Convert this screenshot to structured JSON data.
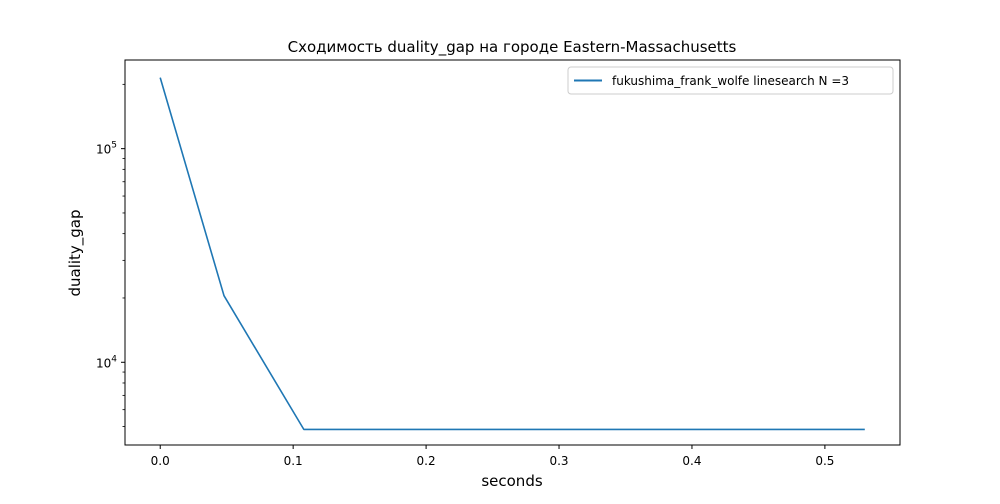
{
  "chart_data": {
    "type": "line",
    "title": "Сходимость duality_gap на городе Eastern-Massachusetts",
    "xlabel": "seconds",
    "ylabel": "duality_gap",
    "xscale": "linear",
    "yscale": "log",
    "xlim": [
      -0.0265,
      0.5565
    ],
    "ylim": [
      4100,
      260000
    ],
    "x_ticks": [
      0.0,
      0.1,
      0.2,
      0.3,
      0.4,
      0.5
    ],
    "x_tick_labels": [
      "0.0",
      "0.1",
      "0.2",
      "0.3",
      "0.4",
      "0.5"
    ],
    "y_ticks": [
      10000,
      100000
    ],
    "y_tick_labels": [
      {
        "base": "10",
        "exp": "4"
      },
      {
        "base": "10",
        "exp": "5"
      }
    ],
    "grid": false,
    "legend_position": "top-right",
    "series": [
      {
        "name": "fukushima_frank_wolfe linesearch N =3",
        "color": "#1f77b4",
        "x": [
          0.0,
          0.048,
          0.108,
          0.2,
          0.3,
          0.4,
          0.53
        ],
        "y": [
          215000,
          20500,
          4850,
          4850,
          4850,
          4850,
          4850
        ]
      }
    ]
  }
}
